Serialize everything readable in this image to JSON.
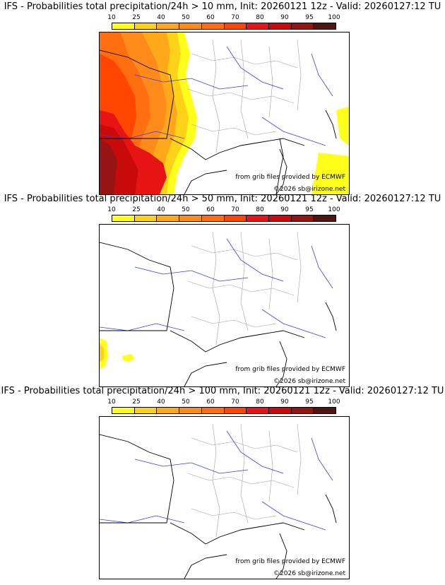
{
  "colorbar": {
    "ticks": [
      "10",
      "25",
      "40",
      "50",
      "60",
      "70",
      "80",
      "90",
      "95",
      "100"
    ],
    "colors": [
      "#ffff1a",
      "#ffd21a",
      "#ffa91a",
      "#ff8c1a",
      "#ff6e0f",
      "#ff4600",
      "#e61414",
      "#c80a0a",
      "#961414",
      "#501414"
    ]
  },
  "panels": [
    {
      "title": "IFS - Probabilities total precipitation/24h > 10 mm, Init: 20260121 12z - Valid: 20260127:12 TU",
      "threshold_mm": 10
    },
    {
      "title": "IFS - Probabilities total precipitation/24h > 50 mm, Init: 20260121 12z - Valid: 20260127:12 TU",
      "threshold_mm": 50
    },
    {
      "title": "IFS - Probabilities total precipitation/24h > 100 mm, Init: 20260121 12z - Valid: 20260127:12 TU",
      "threshold_mm": 100
    }
  ],
  "credits": {
    "source": "from grib files provided by ECMWF",
    "copyright": "©2026 sb@irizone.net"
  },
  "colors": {
    "coastline": "#000000",
    "rivers": "#3c3cdc",
    "borders": "#a0a0a0"
  }
}
